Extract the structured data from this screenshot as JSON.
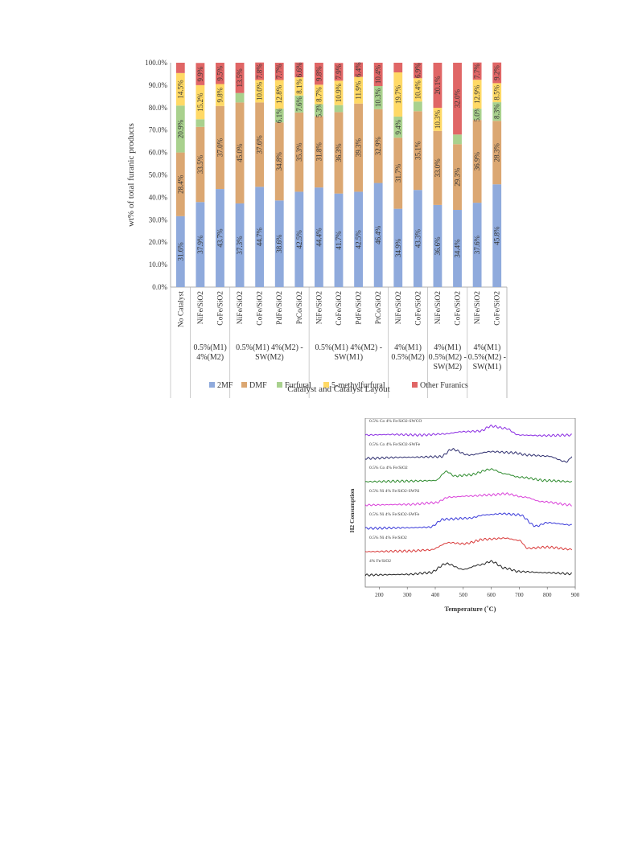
{
  "chart_data": [
    {
      "type": "bar",
      "stacked": true,
      "xlabel": "Catalyst and Catalyst Layout",
      "ylabel": "wt% of total furanic products",
      "ylim": [
        0,
        100
      ],
      "yticks": [
        "0.0%",
        "10.0%",
        "20.0%",
        "30.0%",
        "40.0%",
        "50.0%",
        "60.0%",
        "70.0%",
        "80.0%",
        "90.0%",
        "100.0%"
      ],
      "categories": [
        "No Catalyst",
        "NiFe/SiO2",
        "CoFe/SiO2",
        "NiFe/SiO2",
        "CoFe/SiO2",
        "PdFe/SiO2",
        "PtCo/SiO2",
        "NiFe/SiO2",
        "CoFe/SiO2",
        "PdFe/SiO2",
        "PtCo/SiO2",
        "NiFe/SiO2",
        "CoFe/SiO2",
        "NiFe/SiO2",
        "CoFe/SiO2",
        "NiFe/SiO2",
        "CoFe/SiO2"
      ],
      "groups": [
        {
          "label": [
            "0.5%(M1)",
            "4%(M2)"
          ],
          "categories": [
            1,
            2
          ]
        },
        {
          "label": [
            "0.5%(M1) 4%(M2) -",
            "SW(M2)"
          ],
          "categories": [
            3,
            6
          ]
        },
        {
          "label": [
            "0.5%(M1) 4%(M2) -",
            "SW(M1)"
          ],
          "categories": [
            7,
            10
          ]
        },
        {
          "label": [
            "4%(M1)",
            "0.5%(M2)"
          ],
          "categories": [
            11,
            12
          ]
        },
        {
          "label": [
            "4%(M1)",
            "0.5%(M2) -",
            "SW(M2)"
          ],
          "categories": [
            13,
            14
          ]
        },
        {
          "label": [
            "4%(M1)",
            "0.5%(M2) -",
            "SW(M1)"
          ],
          "categories": [
            15,
            16
          ]
        }
      ],
      "series": [
        {
          "name": "2MF",
          "color": "#8faadc",
          "values": [
            31.6,
            37.9,
            43.7,
            37.3,
            44.7,
            38.6,
            42.5,
            44.4,
            41.7,
            42.5,
            46.4,
            34.9,
            43.3,
            36.6,
            34.4,
            37.6,
            45.8
          ],
          "labels": [
            "31.6%",
            "37.9%",
            "43.7%",
            "37.3%",
            "44.7%",
            "38.6%",
            "42.5%",
            "44.4%",
            "41.7%",
            "42.5%",
            "46.4%",
            "34.9%",
            "43.3%",
            "36.6%",
            "34.4%",
            "37.6%",
            "45.8%"
          ]
        },
        {
          "name": "DMF",
          "color": "#dba772",
          "values": [
            28.4,
            33.5,
            37.0,
            45.0,
            37.6,
            34.8,
            35.3,
            31.8,
            36.3,
            39.3,
            32.9,
            31.7,
            35.1,
            33.0,
            29.3,
            36.9,
            28.3
          ],
          "labels": [
            "28.4%",
            "33.5%",
            "37.0%",
            "45.0%",
            "37.6%",
            "34.8%",
            "35.3%",
            "31.8%",
            "36.3%",
            "39.3%",
            "32.9%",
            "31.7%",
            "35.1%",
            "33.0%",
            "29.3%",
            "36.9%",
            "28.3%"
          ]
        },
        {
          "name": "Furfural",
          "color": "#a9d18e",
          "values": [
            20.9,
            3.4,
            0,
            4.2,
            0,
            6.1,
            7.6,
            5.3,
            3.1,
            0,
            10.3,
            9.4,
            4.3,
            0,
            4.3,
            5.0,
            8.3
          ],
          "labels": [
            "20.9%",
            "",
            "",
            "",
            "",
            "6.1%",
            "7.6%",
            "5.3%",
            "",
            "",
            "10.3%",
            "9.4%",
            "",
            "",
            "",
            "5.0%",
            "8.3%"
          ]
        },
        {
          "name": "5-methylfurfural",
          "color": "#ffd966",
          "values": [
            14.5,
            15.2,
            9.8,
            0,
            10.0,
            12.8,
            8.1,
            8.7,
            10.9,
            11.9,
            0,
            19.7,
            10.4,
            10.3,
            0,
            12.9,
            8.5
          ],
          "labels": [
            "14.5%",
            "15.2%",
            "9.8%",
            "",
            "10.0%",
            "12.8%",
            "8.1%",
            "8.7%",
            "10.9%",
            "11.9%",
            "",
            "19.7%",
            "10.4%",
            "10.3%",
            "",
            "12.9%",
            "8.5%"
          ]
        },
        {
          "name": "Other Furanics",
          "color": "#e06666",
          "values": [
            4.6,
            9.9,
            9.5,
            13.5,
            7.8,
            7.7,
            6.6,
            9.8,
            7.9,
            6.4,
            10.4,
            4.3,
            6.9,
            20.1,
            32.0,
            7.7,
            9.2
          ],
          "labels": [
            "",
            "9.9%",
            "9.5%",
            "13.5%",
            "7.8%",
            "7.7%",
            "6.6%",
            "9.8%",
            "7.9%",
            "6.4%",
            "10.4%",
            "",
            "6.9%",
            "20.1%",
            "32.0%",
            "7.7%",
            "9.2%"
          ]
        }
      ],
      "legend": "bottom"
    },
    {
      "type": "line",
      "xlabel": "Temperature (˚C)",
      "ylabel": "H2 Consumption",
      "xlim": [
        150,
        900
      ],
      "xticks": [
        200,
        300,
        400,
        500,
        600,
        700,
        800,
        900
      ],
      "series": [
        {
          "name": "0.5% Co 4% Fe/SiO2-SWCO",
          "color": "#8a2be2",
          "offset": 6,
          "x": [
            150,
            250,
            350,
            430,
            500,
            560,
            600,
            650,
            700,
            780,
            890
          ],
          "y": [
            0,
            0.05,
            0,
            0.1,
            0.3,
            0.35,
            0.8,
            0.6,
            0,
            -0.05,
            0
          ]
        },
        {
          "name": "0.5% Co 4% Fe/SiO2-SWFe",
          "color": "#2f2f6f",
          "offset": 5,
          "x": [
            150,
            300,
            420,
            460,
            520,
            600,
            680,
            730,
            800,
            870,
            890
          ],
          "y": [
            0,
            0.1,
            0.15,
            0.8,
            0.3,
            0.6,
            0.5,
            0.3,
            0.2,
            -0.3,
            0.2
          ]
        },
        {
          "name": "0.5% Co 4% Fe/SiO2",
          "color": "#2e8b2e",
          "offset": 4,
          "x": [
            150,
            300,
            400,
            440,
            470,
            520,
            600,
            650,
            700,
            800,
            890
          ],
          "y": [
            0,
            0.05,
            0.1,
            0.9,
            0.5,
            0.6,
            1.1,
            0.7,
            0.4,
            0.1,
            0
          ]
        },
        {
          "name": "0.5% Ni 4% Fe/SiO2-SWNi",
          "color": "#d940d9",
          "offset": 3,
          "x": [
            150,
            300,
            400,
            450,
            520,
            600,
            650,
            720,
            780,
            890
          ],
          "y": [
            0,
            0.05,
            0.2,
            0.7,
            0.8,
            0.9,
            1.0,
            0.7,
            0.3,
            0
          ]
        },
        {
          "name": "0.5% Ni 4% Fe/SiO2-SWFe",
          "color": "#3a3ad9",
          "offset": 2,
          "x": [
            150,
            300,
            380,
            430,
            520,
            580,
            640,
            700,
            760,
            800,
            890
          ],
          "y": [
            0,
            0.05,
            0.1,
            0.8,
            0.9,
            1.2,
            1.3,
            1.2,
            0.2,
            0.5,
            0.3
          ]
        },
        {
          "name": "0.5% Ni 4% Fe/SiO2",
          "color": "#d93a3a",
          "offset": 1,
          "x": [
            150,
            300,
            380,
            450,
            500,
            580,
            650,
            700,
            730,
            800,
            890
          ],
          "y": [
            0,
            0.05,
            0.15,
            0.8,
            0.7,
            1.1,
            1.2,
            1.0,
            0.3,
            0.4,
            0.2
          ]
        },
        {
          "name": "4% Fe/SiO2",
          "color": "#222222",
          "offset": 0,
          "x": [
            150,
            300,
            380,
            440,
            500,
            560,
            600,
            650,
            700,
            800,
            890
          ],
          "y": [
            0,
            0.05,
            0.2,
            1.0,
            0.5,
            0.9,
            1.2,
            0.6,
            0.3,
            0.2,
            0.1
          ]
        }
      ]
    }
  ]
}
